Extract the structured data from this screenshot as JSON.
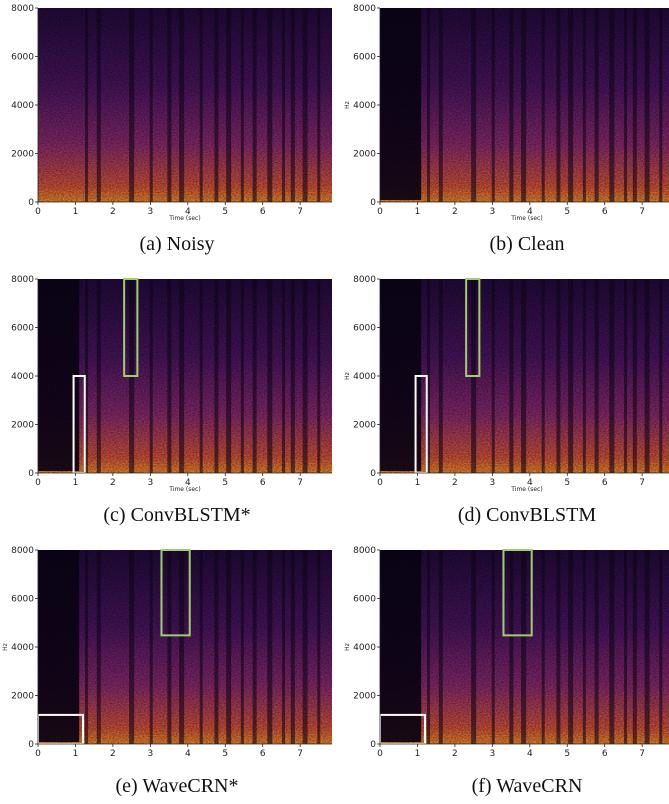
{
  "chart_data": [
    {
      "type": "spectrogram",
      "caption": "(a) Noisy",
      "xlabel": "Time (sec)",
      "xlim": [
        0,
        7.85
      ],
      "ylim": [
        0,
        8000
      ],
      "xticks": [
        0,
        1,
        2,
        3,
        4,
        5,
        6,
        7
      ],
      "yticks": [
        0,
        2000,
        4000,
        6000,
        8000
      ]
    },
    {
      "type": "spectrogram",
      "caption": "(b) Clean",
      "xlabel": "Time (sec)",
      "ylabel": "Hz",
      "xlim": [
        0,
        7.85
      ],
      "ylim": [
        0,
        8000
      ],
      "xticks": [
        0,
        1,
        2,
        3,
        4,
        5,
        6,
        7
      ],
      "yticks": [
        0,
        2000,
        4000,
        6000,
        8000
      ]
    },
    {
      "type": "spectrogram",
      "caption": "(c) ConvBLSTM*",
      "xlabel": "Time (sec)",
      "xlim": [
        0,
        7.85
      ],
      "ylim": [
        0,
        8000
      ],
      "xticks": [
        0,
        1,
        2,
        3,
        4,
        5,
        6,
        7
      ],
      "yticks": [
        0,
        2000,
        4000,
        6000,
        8000
      ]
    },
    {
      "type": "spectrogram",
      "caption": "(d) ConvBLSTM",
      "xlabel": "Time (sec)",
      "ylabel": "Hz",
      "xlim": [
        0,
        7.85
      ],
      "ylim": [
        0,
        8000
      ],
      "xticks": [
        0,
        1,
        2,
        3,
        4,
        5,
        6,
        7
      ],
      "yticks": [
        0,
        2000,
        4000,
        6000,
        8000
      ]
    },
    {
      "type": "spectrogram",
      "caption": "(e) WaveCRN*",
      "ylabel": "Hz",
      "xlim": [
        0,
        7.85
      ],
      "ylim": [
        0,
        8000
      ],
      "xticks": [
        0,
        1,
        2,
        3,
        4,
        5,
        6,
        7
      ],
      "yticks": [
        0,
        2000,
        4000,
        6000,
        8000
      ]
    },
    {
      "type": "spectrogram",
      "caption": "(f) WaveCRN",
      "ylabel": "Hz",
      "xlim": [
        0,
        7.85
      ],
      "ylim": [
        0,
        8000
      ],
      "xticks": [
        0,
        1,
        2,
        3,
        4,
        5,
        6,
        7
      ],
      "yticks": [
        0,
        2000,
        4000,
        6000,
        8000
      ]
    }
  ]
}
